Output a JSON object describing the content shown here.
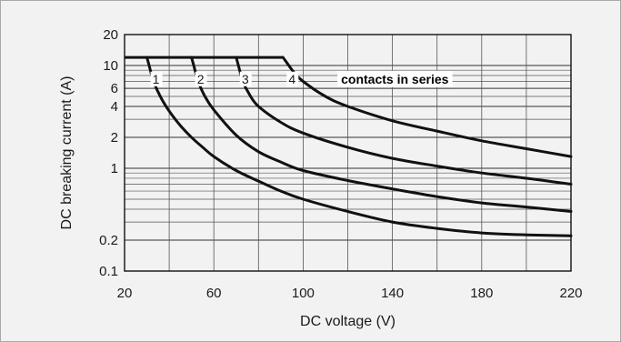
{
  "chart_data": {
    "type": "line",
    "title": "",
    "xlabel": "DC voltage (V)",
    "ylabel": "DC breaking current (A)",
    "xlim": [
      20,
      220
    ],
    "ylim": [
      0.1,
      20
    ],
    "yscale": "log",
    "grid": true,
    "x_ticks": [
      20,
      60,
      100,
      140,
      180,
      220
    ],
    "y_ticks": [
      0.1,
      0.2,
      1,
      2,
      4,
      6,
      10,
      20
    ],
    "y_tick_labels": [
      "0.1",
      "0.2",
      "1",
      "2",
      "4",
      "6",
      "10",
      "20"
    ],
    "annotation": "contacts in series",
    "series": [
      {
        "name": "1",
        "x": [
          30,
          31,
          33,
          36,
          40,
          45,
          50,
          55,
          60,
          70,
          80,
          90,
          100,
          120,
          140,
          160,
          180,
          200,
          220
        ],
        "y": [
          12,
          10,
          7,
          5,
          3.6,
          2.6,
          2.0,
          1.6,
          1.3,
          0.95,
          0.75,
          0.6,
          0.5,
          0.38,
          0.3,
          0.26,
          0.235,
          0.225,
          0.22
        ]
      },
      {
        "name": "2",
        "x": [
          50,
          51,
          53,
          56,
          60,
          70,
          80,
          90,
          100,
          120,
          140,
          160,
          180,
          200,
          220
        ],
        "y": [
          12,
          10,
          7,
          5,
          3.7,
          2.1,
          1.45,
          1.15,
          0.95,
          0.76,
          0.63,
          0.53,
          0.46,
          0.42,
          0.38
        ]
      },
      {
        "name": "3",
        "x": [
          70,
          71,
          73,
          76,
          80,
          90,
          100,
          120,
          140,
          160,
          180,
          200,
          220
        ],
        "y": [
          12,
          10,
          7,
          5.2,
          4.0,
          2.8,
          2.2,
          1.6,
          1.25,
          1.05,
          0.9,
          0.8,
          0.7
        ]
      },
      {
        "name": "4",
        "x": [
          91,
          96,
          100,
          110,
          120,
          140,
          160,
          180,
          200,
          220
        ],
        "y": [
          12,
          8.5,
          7,
          5.0,
          4.0,
          2.9,
          2.3,
          1.85,
          1.55,
          1.3
        ]
      }
    ],
    "plateau": {
      "x": [
        20,
        91
      ],
      "y": 12
    }
  }
}
